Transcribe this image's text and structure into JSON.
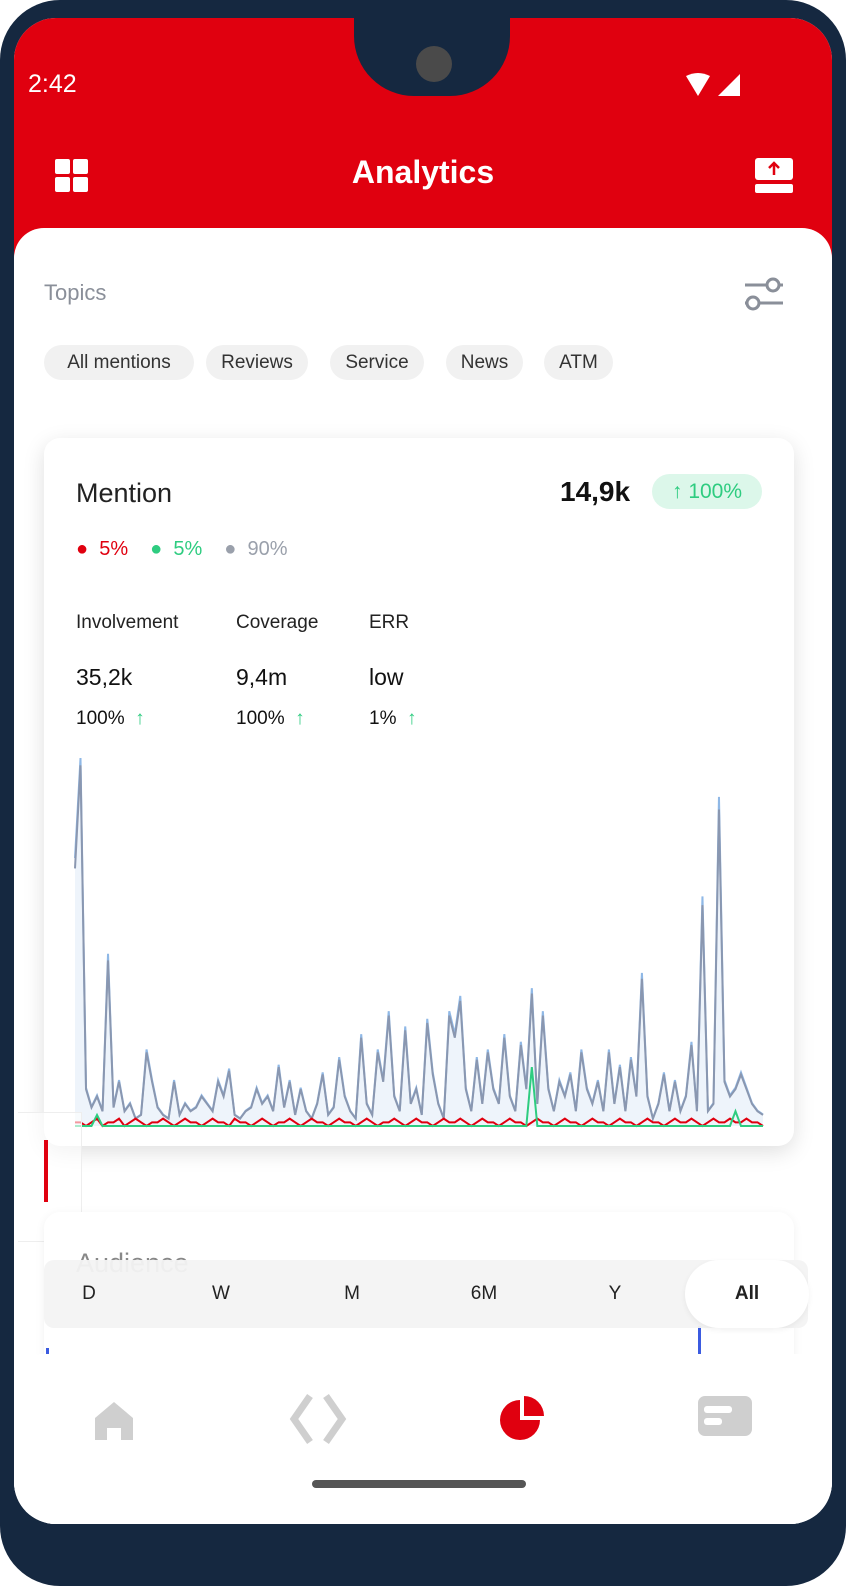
{
  "status": {
    "time": "2:42"
  },
  "header": {
    "title": "Analytics",
    "left_icon": "grid-icon",
    "right_icon": "upload-icon"
  },
  "topics": {
    "label": "Topics",
    "chips": [
      "All mentions",
      "Reviews",
      "Service",
      "News",
      "ATM"
    ]
  },
  "mention": {
    "title": "Mention",
    "total": "14,9k",
    "change": "100%",
    "legend": [
      {
        "label": "5%",
        "color": "#e0000f"
      },
      {
        "label": "5%",
        "color": "#2ecc80"
      },
      {
        "label": "90%",
        "color": "#9aa0ab"
      }
    ],
    "metrics": [
      {
        "label": "Involvement",
        "value": "35,2k",
        "change": "100%"
      },
      {
        "label": "Coverage",
        "value": "9,4m",
        "change": "100%"
      },
      {
        "label": "ERR",
        "value": "low",
        "change": "1%"
      }
    ]
  },
  "chart_data": {
    "type": "line",
    "title": "",
    "xlabel": "",
    "ylabel": "",
    "grid": false,
    "ylim": [
      0,
      100
    ],
    "series": [
      {
        "color": "#8a97b0",
        "values": [
          70,
          98,
          10,
          5,
          8,
          4,
          45,
          5,
          12,
          4,
          6,
          2,
          3,
          20,
          12,
          5,
          3,
          2,
          12,
          3,
          6,
          4,
          5,
          8,
          6,
          4,
          12,
          8,
          15,
          3,
          2,
          4,
          5,
          10,
          6,
          8,
          4,
          16,
          5,
          12,
          3,
          10,
          4,
          2,
          6,
          14,
          3,
          5,
          18,
          8,
          4,
          2,
          24,
          6,
          3,
          20,
          12,
          30,
          8,
          4,
          26,
          6,
          10,
          3,
          28,
          14,
          6,
          2,
          30,
          24,
          34,
          10,
          4,
          18,
          6,
          20,
          10,
          6,
          24,
          8,
          4,
          22,
          10,
          36,
          6,
          30,
          10,
          4,
          12,
          8,
          14,
          4,
          20,
          10,
          6,
          12,
          4,
          20,
          6,
          16,
          4,
          18,
          8,
          40,
          8,
          2,
          6,
          14,
          4,
          12,
          4,
          8,
          22,
          4,
          60,
          4,
          6,
          86,
          12,
          8,
          10,
          14,
          10,
          6,
          4,
          3
        ]
      },
      {
        "color": "#e0000f",
        "values": [
          1,
          1,
          0,
          1,
          2,
          0,
          1,
          1,
          2,
          0,
          1,
          2,
          1,
          0,
          1,
          1,
          2,
          1,
          0,
          1,
          2,
          1,
          1,
          0,
          1,
          2,
          1,
          1,
          0,
          2,
          1,
          1,
          0,
          1,
          2,
          1,
          0,
          1,
          1,
          2,
          1,
          0,
          1,
          2,
          1,
          1,
          0,
          1,
          2,
          1,
          1,
          0,
          1,
          2,
          1,
          0,
          1,
          1,
          2,
          1,
          0,
          1,
          2,
          1,
          1,
          0,
          1,
          2,
          1,
          1,
          2,
          1,
          0,
          1,
          2,
          1,
          1,
          0,
          1,
          2,
          1,
          1,
          0,
          1,
          2,
          1,
          1,
          0,
          1,
          2,
          1,
          1,
          0,
          1,
          2,
          1,
          1,
          0,
          1,
          2,
          1,
          1,
          0,
          1,
          2,
          1,
          1,
          0,
          1,
          2,
          1,
          1,
          2,
          1,
          0,
          1,
          2,
          1,
          1,
          2,
          1,
          1,
          2,
          1,
          1,
          0
        ]
      },
      {
        "color": "#2ecc80",
        "values": [
          0,
          0,
          0,
          0,
          3,
          0,
          0,
          0,
          0,
          0,
          0,
          0,
          0,
          0,
          0,
          0,
          0,
          0,
          0,
          0,
          0,
          0,
          0,
          0,
          0,
          0,
          0,
          0,
          0,
          0,
          0,
          0,
          0,
          0,
          0,
          0,
          0,
          0,
          0,
          0,
          0,
          0,
          0,
          0,
          0,
          0,
          0,
          0,
          0,
          0,
          0,
          0,
          0,
          0,
          0,
          0,
          0,
          0,
          0,
          0,
          0,
          0,
          0,
          0,
          0,
          0,
          0,
          0,
          0,
          0,
          0,
          0,
          0,
          0,
          0,
          0,
          0,
          0,
          0,
          0,
          0,
          0,
          0,
          16,
          0,
          0,
          0,
          0,
          0,
          0,
          0,
          0,
          0,
          0,
          0,
          0,
          0,
          0,
          0,
          0,
          0,
          0,
          0,
          0,
          0,
          0,
          0,
          0,
          0,
          0,
          0,
          0,
          0,
          0,
          0,
          0,
          0,
          0,
          0,
          0,
          4,
          0,
          0,
          0,
          0,
          0
        ]
      }
    ]
  },
  "audience": {
    "title": "Audience"
  },
  "range": {
    "options": [
      "D",
      "W",
      "M",
      "6M",
      "Y",
      "All"
    ],
    "selected": "All"
  },
  "nav": {
    "items": [
      "home-icon",
      "code-icon",
      "pie-chart-icon",
      "card-icon"
    ],
    "active": "pie-chart-icon",
    "active_color": "#e0000f"
  }
}
